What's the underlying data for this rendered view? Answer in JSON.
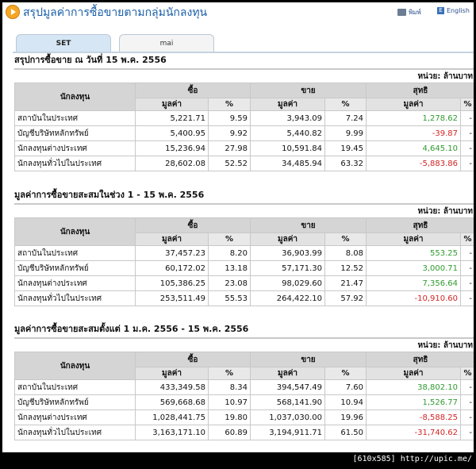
{
  "header": {
    "title": "สรุปมูลค่าการซื้อขายตามกลุ่มนักลงทุน",
    "print_label": "พิมพ์",
    "lang_label": "English",
    "lang_icon": "E"
  },
  "tabs": [
    {
      "label": "SET",
      "active": true
    },
    {
      "label": "mai",
      "active": false
    }
  ],
  "columns": {
    "investor": "นักลงทุน",
    "buy": "ซื้อ",
    "sell": "ขาย",
    "net": "สุทธิ",
    "value": "มูลค่า",
    "percent": "%"
  },
  "sections": [
    {
      "title": "สรุปการซื้อขาย ณ วันที่ 15 พ.ค. 2556",
      "unit": "หน่วย: ล้านบาท",
      "rows": [
        {
          "name": "สถาบันในประเทศ",
          "buy": "5,221.71",
          "buy_pct": "9.59",
          "sell": "3,943.09",
          "sell_pct": "7.24",
          "net": "1,278.62",
          "net_sign": "pos",
          "net_pct": "-"
        },
        {
          "name": "บัญชีบริษัทหลักทรัพย์",
          "buy": "5,400.95",
          "buy_pct": "9.92",
          "sell": "5,440.82",
          "sell_pct": "9.99",
          "net": "-39.87",
          "net_sign": "neg",
          "net_pct": "-"
        },
        {
          "name": "นักลงทุนต่างประเทศ",
          "buy": "15,236.94",
          "buy_pct": "27.98",
          "sell": "10,591.84",
          "sell_pct": "19.45",
          "net": "4,645.10",
          "net_sign": "pos",
          "net_pct": "-"
        },
        {
          "name": "นักลงทุนทั่วไปในประเทศ",
          "buy": "28,602.08",
          "buy_pct": "52.52",
          "sell": "34,485.94",
          "sell_pct": "63.32",
          "net": "-5,883.86",
          "net_sign": "neg",
          "net_pct": "-"
        }
      ]
    },
    {
      "title": "มูลค่าการซื้อขายสะสมในช่วง 1 - 15 พ.ค. 2556",
      "unit": "หน่วย: ล้านบาท",
      "rows": [
        {
          "name": "สถาบันในประเทศ",
          "buy": "37,457.23",
          "buy_pct": "8.20",
          "sell": "36,903.99",
          "sell_pct": "8.08",
          "net": "553.25",
          "net_sign": "pos",
          "net_pct": "-"
        },
        {
          "name": "บัญชีบริษัทหลักทรัพย์",
          "buy": "60,172.02",
          "buy_pct": "13.18",
          "sell": "57,171.30",
          "sell_pct": "12.52",
          "net": "3,000.71",
          "net_sign": "pos",
          "net_pct": "-"
        },
        {
          "name": "นักลงทุนต่างประเทศ",
          "buy": "105,386.25",
          "buy_pct": "23.08",
          "sell": "98,029.60",
          "sell_pct": "21.47",
          "net": "7,356.64",
          "net_sign": "pos",
          "net_pct": "-"
        },
        {
          "name": "นักลงทุนทั่วไปในประเทศ",
          "buy": "253,511.49",
          "buy_pct": "55.53",
          "sell": "264,422.10",
          "sell_pct": "57.92",
          "net": "-10,910.60",
          "net_sign": "neg",
          "net_pct": "-"
        }
      ]
    },
    {
      "title": "มูลค่าการซื้อขายสะสมตั้งแต่ 1 ม.ค. 2556 - 15 พ.ค. 2556",
      "unit": "หน่วย: ล้านบาท",
      "rows": [
        {
          "name": "สถาบันในประเทศ",
          "buy": "433,349.58",
          "buy_pct": "8.34",
          "sell": "394,547.49",
          "sell_pct": "7.60",
          "net": "38,802.10",
          "net_sign": "pos",
          "net_pct": "-"
        },
        {
          "name": "บัญชีบริษัทหลักทรัพย์",
          "buy": "569,668.68",
          "buy_pct": "10.97",
          "sell": "568,141.90",
          "sell_pct": "10.94",
          "net": "1,526.77",
          "net_sign": "pos",
          "net_pct": "-"
        },
        {
          "name": "นักลงทุนต่างประเทศ",
          "buy": "1,028,441.75",
          "buy_pct": "19.80",
          "sell": "1,037,030.00",
          "sell_pct": "19.96",
          "net": "-8,588.25",
          "net_sign": "neg",
          "net_pct": "-"
        },
        {
          "name": "นักลงทุนทั่วไปในประเทศ",
          "buy": "3,163,171.10",
          "buy_pct": "60.89",
          "sell": "3,194,911.71",
          "sell_pct": "61.50",
          "net": "-31,740.62",
          "net_sign": "neg",
          "net_pct": "-"
        }
      ]
    }
  ],
  "footer": "[610x585] http://upic.me/",
  "colors": {
    "title_blue": "#1a5fa8",
    "positive_green": "#2f9a2f",
    "negative_red": "#d42424",
    "header_gray": "#d5d5d5"
  }
}
